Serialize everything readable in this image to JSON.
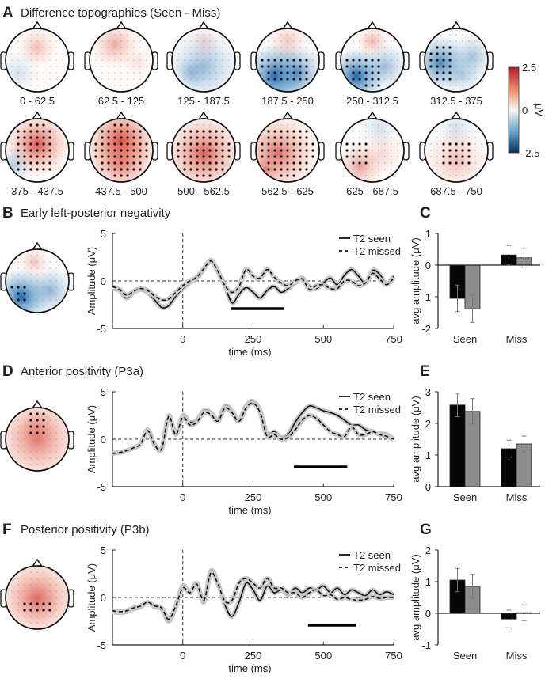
{
  "panels": {
    "A": {
      "letter": "A",
      "title": "Difference topographies (Seen - Miss)"
    },
    "B": {
      "letter": "B",
      "title": "Early left-posterior negativity"
    },
    "C": {
      "letter": "C"
    },
    "D": {
      "letter": "D",
      "title": "Anterior positivity (P3a)"
    },
    "E": {
      "letter": "E"
    },
    "F": {
      "letter": "F",
      "title": "Posterior positivity (P3b)"
    },
    "G": {
      "letter": "G"
    }
  },
  "colorbar": {
    "max_label": "2.5",
    "mid_label": "0",
    "min_label": "-2.5",
    "unit": "μV",
    "colors": {
      "positive": "#b2182b",
      "zero": "#ffffff",
      "negative": "#2166ac"
    }
  },
  "topographies": {
    "labels": [
      "0 - 62.5",
      "62.5 - 125",
      "125 - 187.5",
      "187.5 - 250",
      "250 - 312.5",
      "312.5 - 375",
      "375 - 437.5",
      "437.5 - 500",
      "500 - 562.5",
      "562.5 - 625",
      "625 - 687.5",
      "687.5 - 750"
    ]
  },
  "legend": {
    "seen": "T2 seen",
    "missed": "T2 missed"
  },
  "chart_data": [
    {
      "id": "B",
      "type": "line",
      "xlabel": "time (ms)",
      "ylabel": "Amplitude (μV)",
      "xlim": [
        -250,
        750
      ],
      "ylim": [
        -5,
        5
      ],
      "xticks": [
        "0",
        "250",
        "500",
        "750"
      ],
      "xtick_values": [
        0,
        250,
        500,
        750
      ],
      "yticks": [
        "5",
        "0",
        "-5"
      ],
      "ytick_values": [
        5,
        0,
        -5
      ],
      "significance_window_ms": [
        170,
        360
      ],
      "x": [
        -250,
        -225,
        -200,
        -175,
        -150,
        -125,
        -100,
        -75,
        -50,
        -25,
        0,
        25,
        50,
        75,
        100,
        125,
        150,
        175,
        200,
        225,
        250,
        275,
        300,
        325,
        350,
        375,
        400,
        425,
        450,
        475,
        500,
        525,
        550,
        575,
        600,
        625,
        650,
        675,
        700,
        725,
        750
      ],
      "series": [
        {
          "name": "T2 seen",
          "values": [
            -0.8,
            -1.0,
            -1.8,
            -1.2,
            -0.9,
            -1.2,
            -2.0,
            -2.8,
            -2.6,
            -1.6,
            -0.8,
            -0.2,
            0.3,
            1.2,
            2.2,
            1.0,
            -0.5,
            -2.3,
            -1.4,
            -0.7,
            -1.2,
            -1.8,
            -1.0,
            -0.6,
            -1.2,
            -0.8,
            -0.2,
            0.3,
            -0.6,
            -0.8,
            -0.2,
            0.3,
            -0.4,
            0.6,
            1.2,
            0.5,
            -0.2,
            1.1,
            0.7,
            -0.3,
            0.5
          ]
        },
        {
          "name": "T2 missed",
          "values": [
            -0.6,
            -0.9,
            -1.5,
            -1.1,
            -0.8,
            -1.0,
            -1.6,
            -2.0,
            -1.9,
            -1.2,
            -0.5,
            0.0,
            0.4,
            1.3,
            2.1,
            1.0,
            -0.5,
            -1.2,
            -0.6,
            1.2,
            0.5,
            0.3,
            1.2,
            0.4,
            -0.2,
            -0.5,
            0.0,
            0.2,
            -0.9,
            -0.5,
            -0.4,
            -0.8,
            -0.8,
            0.0,
            0.0,
            -0.5,
            -0.2,
            0.8,
            0.2,
            -0.4,
            0.3
          ]
        }
      ]
    },
    {
      "id": "C",
      "type": "bar",
      "ylabel": "avg amplitude (μV)",
      "ylim": [
        -2,
        1
      ],
      "yticks": [
        "1",
        "0",
        "-1",
        "-2"
      ],
      "ytick_values": [
        1,
        0,
        -1,
        -2
      ],
      "categories": [
        "Seen",
        "Miss"
      ],
      "series": [
        {
          "name": "T2 seen",
          "values": [
            -1.05,
            0.32
          ],
          "errors": [
            0.42,
            0.3
          ]
        },
        {
          "name": "T2 missed",
          "values": [
            -1.38,
            0.23
          ],
          "errors": [
            0.43,
            0.3
          ]
        }
      ]
    },
    {
      "id": "D",
      "type": "line",
      "xlabel": "time (ms)",
      "ylabel": "Amplitude (μV)",
      "xlim": [
        -250,
        750
      ],
      "ylim": [
        -5,
        5
      ],
      "xticks": [
        "0",
        "250",
        "500",
        "750"
      ],
      "xtick_values": [
        0,
        250,
        500,
        750
      ],
      "yticks": [
        "5",
        "0",
        "-5"
      ],
      "ytick_values": [
        5,
        0,
        -5
      ],
      "significance_window_ms": [
        395,
        585
      ],
      "x": [
        -250,
        -225,
        -200,
        -175,
        -150,
        -125,
        -100,
        -75,
        -50,
        -25,
        0,
        25,
        50,
        75,
        100,
        125,
        150,
        175,
        200,
        225,
        250,
        275,
        300,
        325,
        350,
        375,
        400,
        425,
        450,
        475,
        500,
        525,
        550,
        575,
        600,
        625,
        650,
        675,
        700,
        725,
        750
      ],
      "series": [
        {
          "name": "T2 seen",
          "values": [
            -1.5,
            -1.4,
            -1.2,
            -0.9,
            -0.5,
            1.0,
            -0.6,
            -1.0,
            2.5,
            0.5,
            2.5,
            1.8,
            2.0,
            3.0,
            2.8,
            2.0,
            3.5,
            3.0,
            2.0,
            3.5,
            4.0,
            3.0,
            0.5,
            0.8,
            0.2,
            0.5,
            1.8,
            2.8,
            3.5,
            3.3,
            3.0,
            2.8,
            2.5,
            2.0,
            1.5,
            1.5,
            1.0,
            0.8,
            0.6,
            0.5,
            0.0
          ]
        },
        {
          "name": "T2 missed",
          "values": [
            -1.5,
            -1.4,
            -1.2,
            -0.9,
            -0.5,
            0.9,
            -0.6,
            -1.0,
            2.4,
            0.5,
            2.3,
            1.5,
            1.8,
            2.8,
            2.6,
            1.9,
            3.3,
            2.8,
            1.9,
            3.3,
            3.8,
            2.8,
            0.3,
            0.5,
            0.0,
            0.2,
            1.0,
            2.0,
            2.5,
            2.2,
            1.5,
            0.8,
            0.5,
            0.3,
            1.3,
            0.5,
            0.5,
            0.8,
            0.5,
            0.3,
            0.0
          ]
        }
      ]
    },
    {
      "id": "E",
      "type": "bar",
      "ylabel": "avg amplitude (μV)",
      "ylim": [
        0,
        3
      ],
      "yticks": [
        "3",
        "2",
        "1",
        "0"
      ],
      "ytick_values": [
        3,
        2,
        1,
        0
      ],
      "categories": [
        "Seen",
        "Miss"
      ],
      "series": [
        {
          "name": "T2 seen",
          "values": [
            2.58,
            1.2
          ],
          "errors": [
            0.37,
            0.27
          ]
        },
        {
          "name": "T2 missed",
          "values": [
            2.38,
            1.35
          ],
          "errors": [
            0.4,
            0.25
          ]
        }
      ]
    },
    {
      "id": "F",
      "type": "line",
      "xlabel": "time (ms)",
      "ylabel": "Amplitude (μV)",
      "xlim": [
        -250,
        750
      ],
      "ylim": [
        -5,
        5
      ],
      "xticks": [
        "0",
        "250",
        "500",
        "750"
      ],
      "xtick_values": [
        0,
        250,
        500,
        750
      ],
      "yticks": [
        "5",
        "0",
        "-5"
      ],
      "ytick_values": [
        5,
        0,
        -5
      ],
      "significance_window_ms": [
        445,
        615
      ],
      "x": [
        -250,
        -225,
        -200,
        -175,
        -150,
        -125,
        -100,
        -75,
        -50,
        -25,
        0,
        25,
        50,
        75,
        100,
        125,
        150,
        175,
        200,
        225,
        250,
        275,
        300,
        325,
        350,
        375,
        400,
        425,
        450,
        475,
        500,
        525,
        550,
        575,
        600,
        625,
        650,
        675,
        700,
        725,
        750
      ],
      "series": [
        {
          "name": "T2 seen",
          "values": [
            -1.5,
            -1.6,
            -1.5,
            -1.2,
            -1.0,
            -0.5,
            -1.0,
            -1.2,
            -2.5,
            -1.0,
            1.2,
            0.5,
            1.5,
            -0.5,
            2.8,
            1.5,
            -0.8,
            -2.0,
            -0.5,
            1.5,
            0.8,
            -0.3,
            1.2,
            0.5,
            0.8,
            0.3,
            1.0,
            0.5,
            1.0,
            0.8,
            1.2,
            0.5,
            1.0,
            0.3,
            0.8,
            0.5,
            0.2,
            0.8,
            0.3,
            0.6,
            0.3
          ]
        },
        {
          "name": "T2 missed",
          "values": [
            -1.4,
            -1.5,
            -1.4,
            -1.1,
            -0.9,
            -0.5,
            -0.9,
            -1.1,
            -2.3,
            -0.9,
            1.0,
            0.5,
            1.4,
            -0.3,
            2.6,
            1.4,
            -0.4,
            -0.3,
            1.5,
            2.0,
            1.5,
            1.0,
            2.0,
            1.0,
            1.0,
            0.5,
            0.5,
            0.0,
            0.5,
            0.8,
            0.2,
            0.3,
            -0.2,
            0.0,
            -0.2,
            -0.3,
            -0.2,
            0.1,
            -0.1,
            0.0,
            0.0
          ]
        }
      ]
    },
    {
      "id": "G",
      "type": "bar",
      "ylabel": "avg amplitude (μV)",
      "ylim": [
        -1,
        2
      ],
      "yticks": [
        "2",
        "1",
        "0",
        "-1"
      ],
      "ytick_values": [
        2,
        1,
        0,
        -1
      ],
      "categories": [
        "Seen",
        "Miss"
      ],
      "series": [
        {
          "name": "T2 seen",
          "values": [
            1.05,
            -0.18
          ],
          "errors": [
            0.37,
            0.28
          ]
        },
        {
          "name": "T2 missed",
          "values": [
            0.85,
            0.02
          ],
          "errors": [
            0.38,
            0.25
          ]
        }
      ]
    }
  ]
}
